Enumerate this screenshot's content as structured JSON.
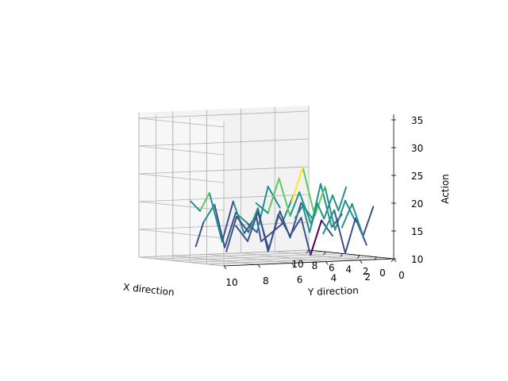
{
  "chart_data": {
    "type": "3d-line-wireframe",
    "xlabel": "X direction",
    "ylabel": "Y direction",
    "zlabel": "Action",
    "xlim": [
      0,
      10
    ],
    "ylim": [
      0,
      10
    ],
    "zlim": [
      10,
      36
    ],
    "x_ticks": [
      "10",
      "8",
      "6",
      "4",
      "2",
      "0"
    ],
    "y_ticks": [
      "10",
      "8",
      "6",
      "4",
      "2",
      "0"
    ],
    "z_ticks": [
      "10",
      "15",
      "20",
      "25",
      "30",
      "35"
    ],
    "grid": true,
    "colormap": "viridis",
    "palette": [
      "#440154",
      "#3b528b",
      "#21918c",
      "#5ec962",
      "#fde725"
    ],
    "series": [
      {
        "values": [
          [
            9.8,
            1,
            20
          ],
          [
            9.2,
            2,
            15
          ],
          [
            9.6,
            3,
            12
          ],
          [
            8.2,
            4,
            17
          ],
          [
            7.6,
            5,
            14
          ],
          [
            6.9,
            6,
            20
          ],
          [
            6.2,
            7,
            13
          ],
          [
            5.7,
            8,
            22
          ],
          [
            4.8,
            9,
            19
          ],
          [
            3.9,
            10,
            21
          ]
        ]
      },
      {
        "values": [
          [
            9.4,
            2,
            18
          ],
          [
            8.8,
            3,
            22
          ],
          [
            8.1,
            4,
            14
          ],
          [
            7.3,
            5,
            16
          ],
          [
            6.6,
            6,
            18
          ],
          [
            5.9,
            7,
            12
          ],
          [
            5.1,
            8,
            20
          ],
          [
            4.4,
            9,
            17
          ],
          [
            3.3,
            10,
            13
          ]
        ]
      },
      {
        "values": [
          [
            8.6,
            0.5,
            16
          ],
          [
            7.9,
            1.5,
            19
          ],
          [
            7.2,
            2.5,
            13
          ],
          [
            6.4,
            3.5,
            18
          ],
          [
            5.8,
            4.5,
            11
          ],
          [
            5.0,
            5.5,
            19
          ],
          [
            4.1,
            6.5,
            15
          ],
          [
            3.5,
            7.5,
            18
          ],
          [
            2.7,
            8.5,
            12
          ]
        ]
      },
      {
        "values": [
          [
            7.2,
            0,
            13
          ],
          [
            6.5,
            1,
            16
          ],
          [
            5.8,
            2,
            10
          ],
          [
            4.9,
            3,
            17
          ],
          [
            4.2,
            4,
            14
          ],
          [
            3.6,
            5,
            18
          ],
          [
            2.7,
            6,
            12
          ],
          [
            2.0,
            7,
            19
          ],
          [
            1.2,
            8,
            14
          ],
          [
            0.6,
            9,
            17
          ]
        ]
      },
      {
        "values": [
          [
            6.1,
            0,
            17
          ],
          [
            5.3,
            1,
            15
          ],
          [
            4.6,
            2,
            23
          ],
          [
            3.7,
            3,
            16
          ],
          [
            3.1,
            4,
            22
          ],
          [
            2.2,
            5,
            18
          ],
          [
            1.5,
            6,
            25
          ],
          [
            0.8,
            7,
            19
          ],
          [
            0.2,
            8,
            21
          ]
        ]
      },
      {
        "values": [
          [
            4.5,
            0,
            16
          ],
          [
            3.7,
            1,
            20
          ],
          [
            2.9,
            2,
            15
          ],
          [
            2.1,
            3,
            23
          ],
          [
            1.3,
            4,
            18
          ],
          [
            0.7,
            5,
            27
          ],
          [
            0.0,
            6,
            21
          ]
        ]
      },
      {
        "values": [
          [
            3.2,
            0,
            12
          ],
          [
            2.5,
            1,
            17
          ],
          [
            1.7,
            2,
            11
          ],
          [
            1.0,
            3,
            19
          ],
          [
            0.3,
            4,
            15
          ]
        ]
      },
      {
        "values": [
          [
            2.4,
            0,
            19
          ],
          [
            1.6,
            1,
            14
          ],
          [
            0.9,
            2,
            20
          ],
          [
            0.1,
            3,
            16
          ]
        ]
      },
      {
        "values": [
          [
            5.6,
            0,
            22
          ],
          [
            4.9,
            0.8,
            18
          ],
          [
            4.0,
            1.6,
            21
          ],
          [
            3.4,
            2.4,
            17
          ],
          [
            2.6,
            3.2,
            20
          ],
          [
            1.9,
            4.0,
            15
          ],
          [
            1.1,
            4.8,
            20
          ],
          [
            0.4,
            5.6,
            18
          ]
        ]
      }
    ]
  }
}
